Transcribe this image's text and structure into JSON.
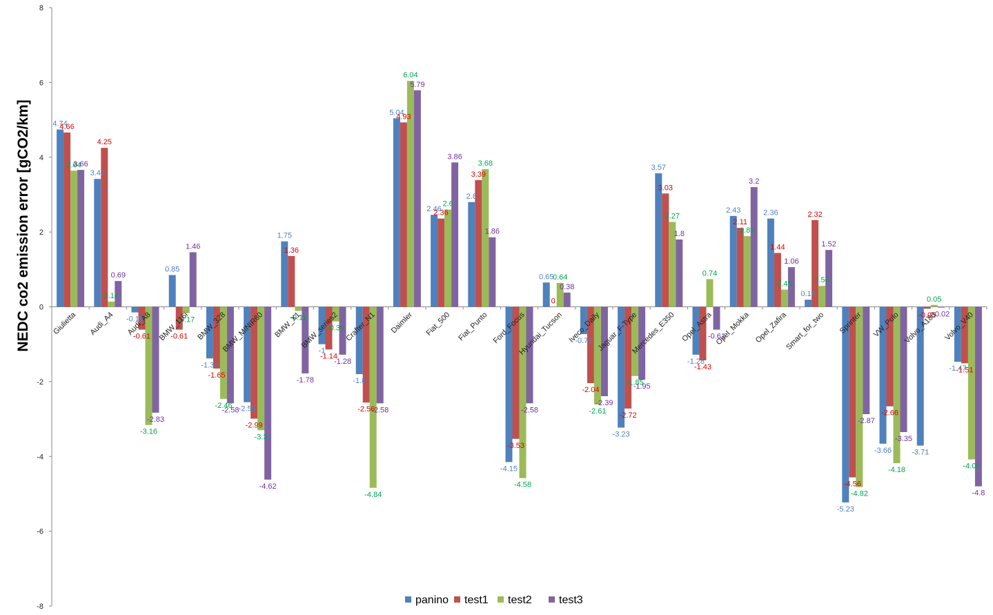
{
  "chart_data": {
    "type": "bar",
    "title": "",
    "xlabel": "",
    "ylabel": "NEDC co2 emission error [gCO2/km]",
    "ylim": [
      -8,
      8
    ],
    "yticks": [
      8,
      6,
      4,
      2,
      0,
      -2,
      -4,
      -6,
      -8
    ],
    "grid": false,
    "legend_position": "bottom",
    "categories": [
      "Giulietta",
      "Audi_A4",
      "Audi_A8",
      "BMW_116i",
      "BMW_328",
      "BMW_MINIR60",
      "BMW_X1",
      "BMW_series2",
      "Crafter_N1",
      "Daimler",
      "Fiat_500",
      "Fiat_Punto",
      "Ford_Focus",
      "Hyundai_Tucson",
      "Iveco_Daily",
      "Jaguar_F-Type",
      "Mercedes_E350",
      "Opel_Astra",
      "Opel_Mokka",
      "Opel_Zafira",
      "Smart_for_two",
      "Sprinter",
      "VW_Polo",
      "Volvo_A180",
      "Volvo_V40"
    ],
    "series": [
      {
        "name": "panino",
        "color": "#4F81BD",
        "label_color": "#4F81BD",
        "values": [
          4.74,
          3.42,
          -0.15,
          0.85,
          -1.38,
          -2.55,
          1.75,
          -1,
          -1.8,
          5.04,
          2.46,
          2.8,
          -4.15,
          0.65,
          -0.73,
          -3.23,
          3.57,
          -1.28,
          2.43,
          2.36,
          0.19,
          -5.23,
          -3.66,
          -3.71,
          -1.47
        ]
      },
      {
        "name": "test1",
        "color": "#C0504D",
        "label_color": "#E00000",
        "values": [
          4.66,
          4.25,
          -0.61,
          -0.61,
          -1.65,
          -2.99,
          1.36,
          -1.14,
          -2.56,
          4.93,
          2.36,
          3.39,
          -3.53,
          0,
          -2.04,
          -2.72,
          3.03,
          -1.43,
          2.11,
          1.44,
          2.32,
          -4.56,
          -2.66,
          -0.05,
          -1.51
        ]
      },
      {
        "name": "test2",
        "color": "#9BBB59",
        "label_color": "#00A650",
        "values": [
          3.64,
          0.14,
          -3.16,
          -0.17,
          -2.46,
          -3.3,
          -0.11,
          -0.39,
          -4.84,
          6.04,
          2.6,
          3.68,
          -4.58,
          0.64,
          -2.61,
          -1.85,
          2.27,
          0.74,
          1.89,
          0.46,
          0.56,
          -4.82,
          -4.18,
          0.05,
          -4.08
        ]
      },
      {
        "name": "test3",
        "color": "#8064A2",
        "label_color": "#7030A0",
        "values": [
          3.66,
          0.69,
          -2.83,
          1.46,
          -2.58,
          -4.62,
          -1.78,
          -1.28,
          -2.58,
          5.79,
          3.86,
          1.86,
          -2.58,
          0.38,
          -2.39,
          -1.95,
          1.8,
          -0.61,
          3.2,
          1.06,
          1.52,
          -2.87,
          -3.35,
          -0.02,
          -4.8
        ]
      }
    ],
    "value_labels": [
      [
        "4.74",
        "3.42",
        "-0.15",
        "0.85",
        "-1.38",
        "-2.55",
        "1.75",
        "-1",
        "-1.8",
        "5.04",
        "2.46",
        "2.8",
        "-4.15",
        "0.65",
        "-0.73",
        "-3.23",
        "3.57",
        "-1.28",
        "2.43",
        "2.36",
        "0.19",
        "-5.23",
        "-3.66",
        "-3.71",
        "-1.47"
      ],
      [
        "4.66",
        "4.25",
        "-0.61",
        "-0.61",
        "-1.65",
        "-2.99",
        "1.36",
        "-1.14",
        "-2.56",
        "4.93",
        "2.36",
        "3.39",
        "-3.53",
        "0",
        "-2.04",
        "-2.72",
        "3.03",
        "-1.43",
        "2.11",
        "1.44",
        "2.32",
        "-4.56",
        "-2.66",
        "-0.05",
        "-1.51"
      ],
      [
        "3.64",
        "0.14",
        "-3.16",
        "-0.17",
        "-2.46",
        "-3.3",
        "-0.11",
        "-0.39",
        "-4.84",
        "6.04",
        "2.6",
        "3.68",
        "-4.58",
        "0.64",
        "-2.61",
        "-1.85",
        "2.27",
        "0.74",
        "1.89",
        "0.46",
        "0.56",
        "-4.82",
        "-4.18",
        "0.05",
        "-4.08"
      ],
      [
        "3.66",
        "0.69",
        "-2.83",
        "1.46",
        "-2.58",
        "-4.62",
        "-1.78",
        "-1.28",
        "-2.58",
        "5.79",
        "3.86",
        "1.86",
        "-2.58",
        "0.38",
        "-2.39",
        "-1.95",
        "1.8",
        "-0.61",
        "3.2",
        "1.06",
        "1.52",
        "-2.87",
        "-3.35",
        "-0.02",
        "-4.8"
      ]
    ]
  }
}
